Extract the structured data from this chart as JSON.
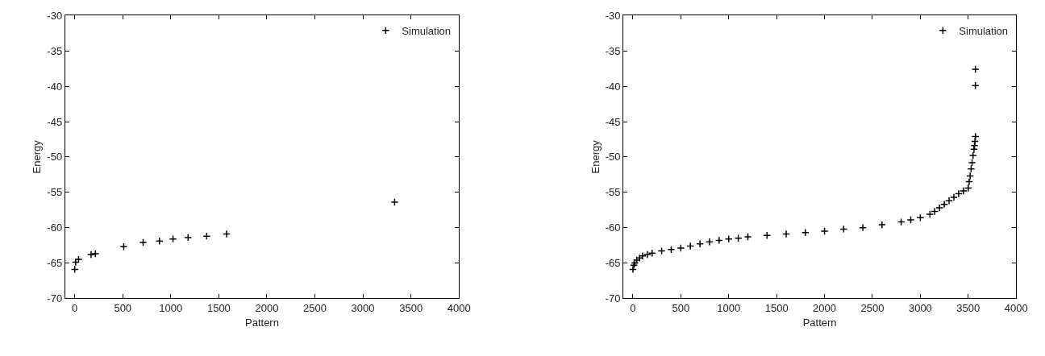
{
  "chart_data": [
    {
      "type": "scatter",
      "xlabel": "Pattern",
      "ylabel": "Energy",
      "xlim": [
        -100,
        4000
      ],
      "ylim": [
        -70,
        -30
      ],
      "xticks": [
        0,
        500,
        1000,
        1500,
        2000,
        2500,
        3000,
        3500,
        4000
      ],
      "yticks": [
        -70,
        -65,
        -60,
        -55,
        -50,
        -45,
        -40,
        -35,
        -30
      ],
      "legend": "top right",
      "marker": "cross",
      "series": [
        {
          "name": "Simulation",
          "color": "#000000",
          "x": [
            0,
            10,
            40,
            170,
            215,
            510,
            712,
            882,
            1023,
            1180,
            1374,
            1581,
            3330
          ],
          "values": [
            -65.9,
            -64.9,
            -64.5,
            -63.8,
            -63.7,
            -62.7,
            -62.1,
            -61.9,
            -61.6,
            -61.4,
            -61.2,
            -60.9,
            -56.4
          ]
        }
      ]
    },
    {
      "type": "scatter",
      "xlabel": "Pattern",
      "ylabel": "Energy",
      "xlim": [
        -100,
        4000
      ],
      "ylim": [
        -70,
        -30
      ],
      "xticks": [
        0,
        500,
        1000,
        1500,
        2000,
        2500,
        3000,
        3500,
        4000
      ],
      "yticks": [
        -70,
        -65,
        -60,
        -55,
        -50,
        -45,
        -40,
        -35,
        -30
      ],
      "legend": "top right",
      "marker": "cross",
      "series": [
        {
          "name": "Simulation",
          "color": "#000000",
          "x": [
            0,
            10,
            20,
            40,
            70,
            100,
            150,
            200,
            300,
            400,
            500,
            600,
            700,
            800,
            900,
            1000,
            1100,
            1200,
            1400,
            1600,
            1800,
            2000,
            2200,
            2400,
            2600,
            2800,
            2900,
            3000,
            3100,
            3150,
            3200,
            3250,
            3300,
            3350,
            3400,
            3450,
            3500,
            3510,
            3520,
            3530,
            3540,
            3550,
            3560,
            3565,
            3570,
            3575,
            3575,
            3575
          ],
          "values": [
            -65.9,
            -65.3,
            -65,
            -64.6,
            -64.3,
            -64,
            -63.8,
            -63.6,
            -63.3,
            -63.1,
            -62.9,
            -62.6,
            -62.3,
            -62,
            -61.8,
            -61.6,
            -61.5,
            -61.3,
            -61.1,
            -60.9,
            -60.7,
            -60.5,
            -60.2,
            -60,
            -59.6,
            -59.2,
            -58.9,
            -58.6,
            -58.1,
            -57.7,
            -57.2,
            -56.7,
            -56.2,
            -55.7,
            -55.2,
            -54.8,
            -54.4,
            -53.5,
            -52.7,
            -51.7,
            -50.8,
            -49.8,
            -48.9,
            -48.4,
            -47.8,
            -47.1,
            -39.9,
            -37.6
          ]
        }
      ]
    }
  ]
}
